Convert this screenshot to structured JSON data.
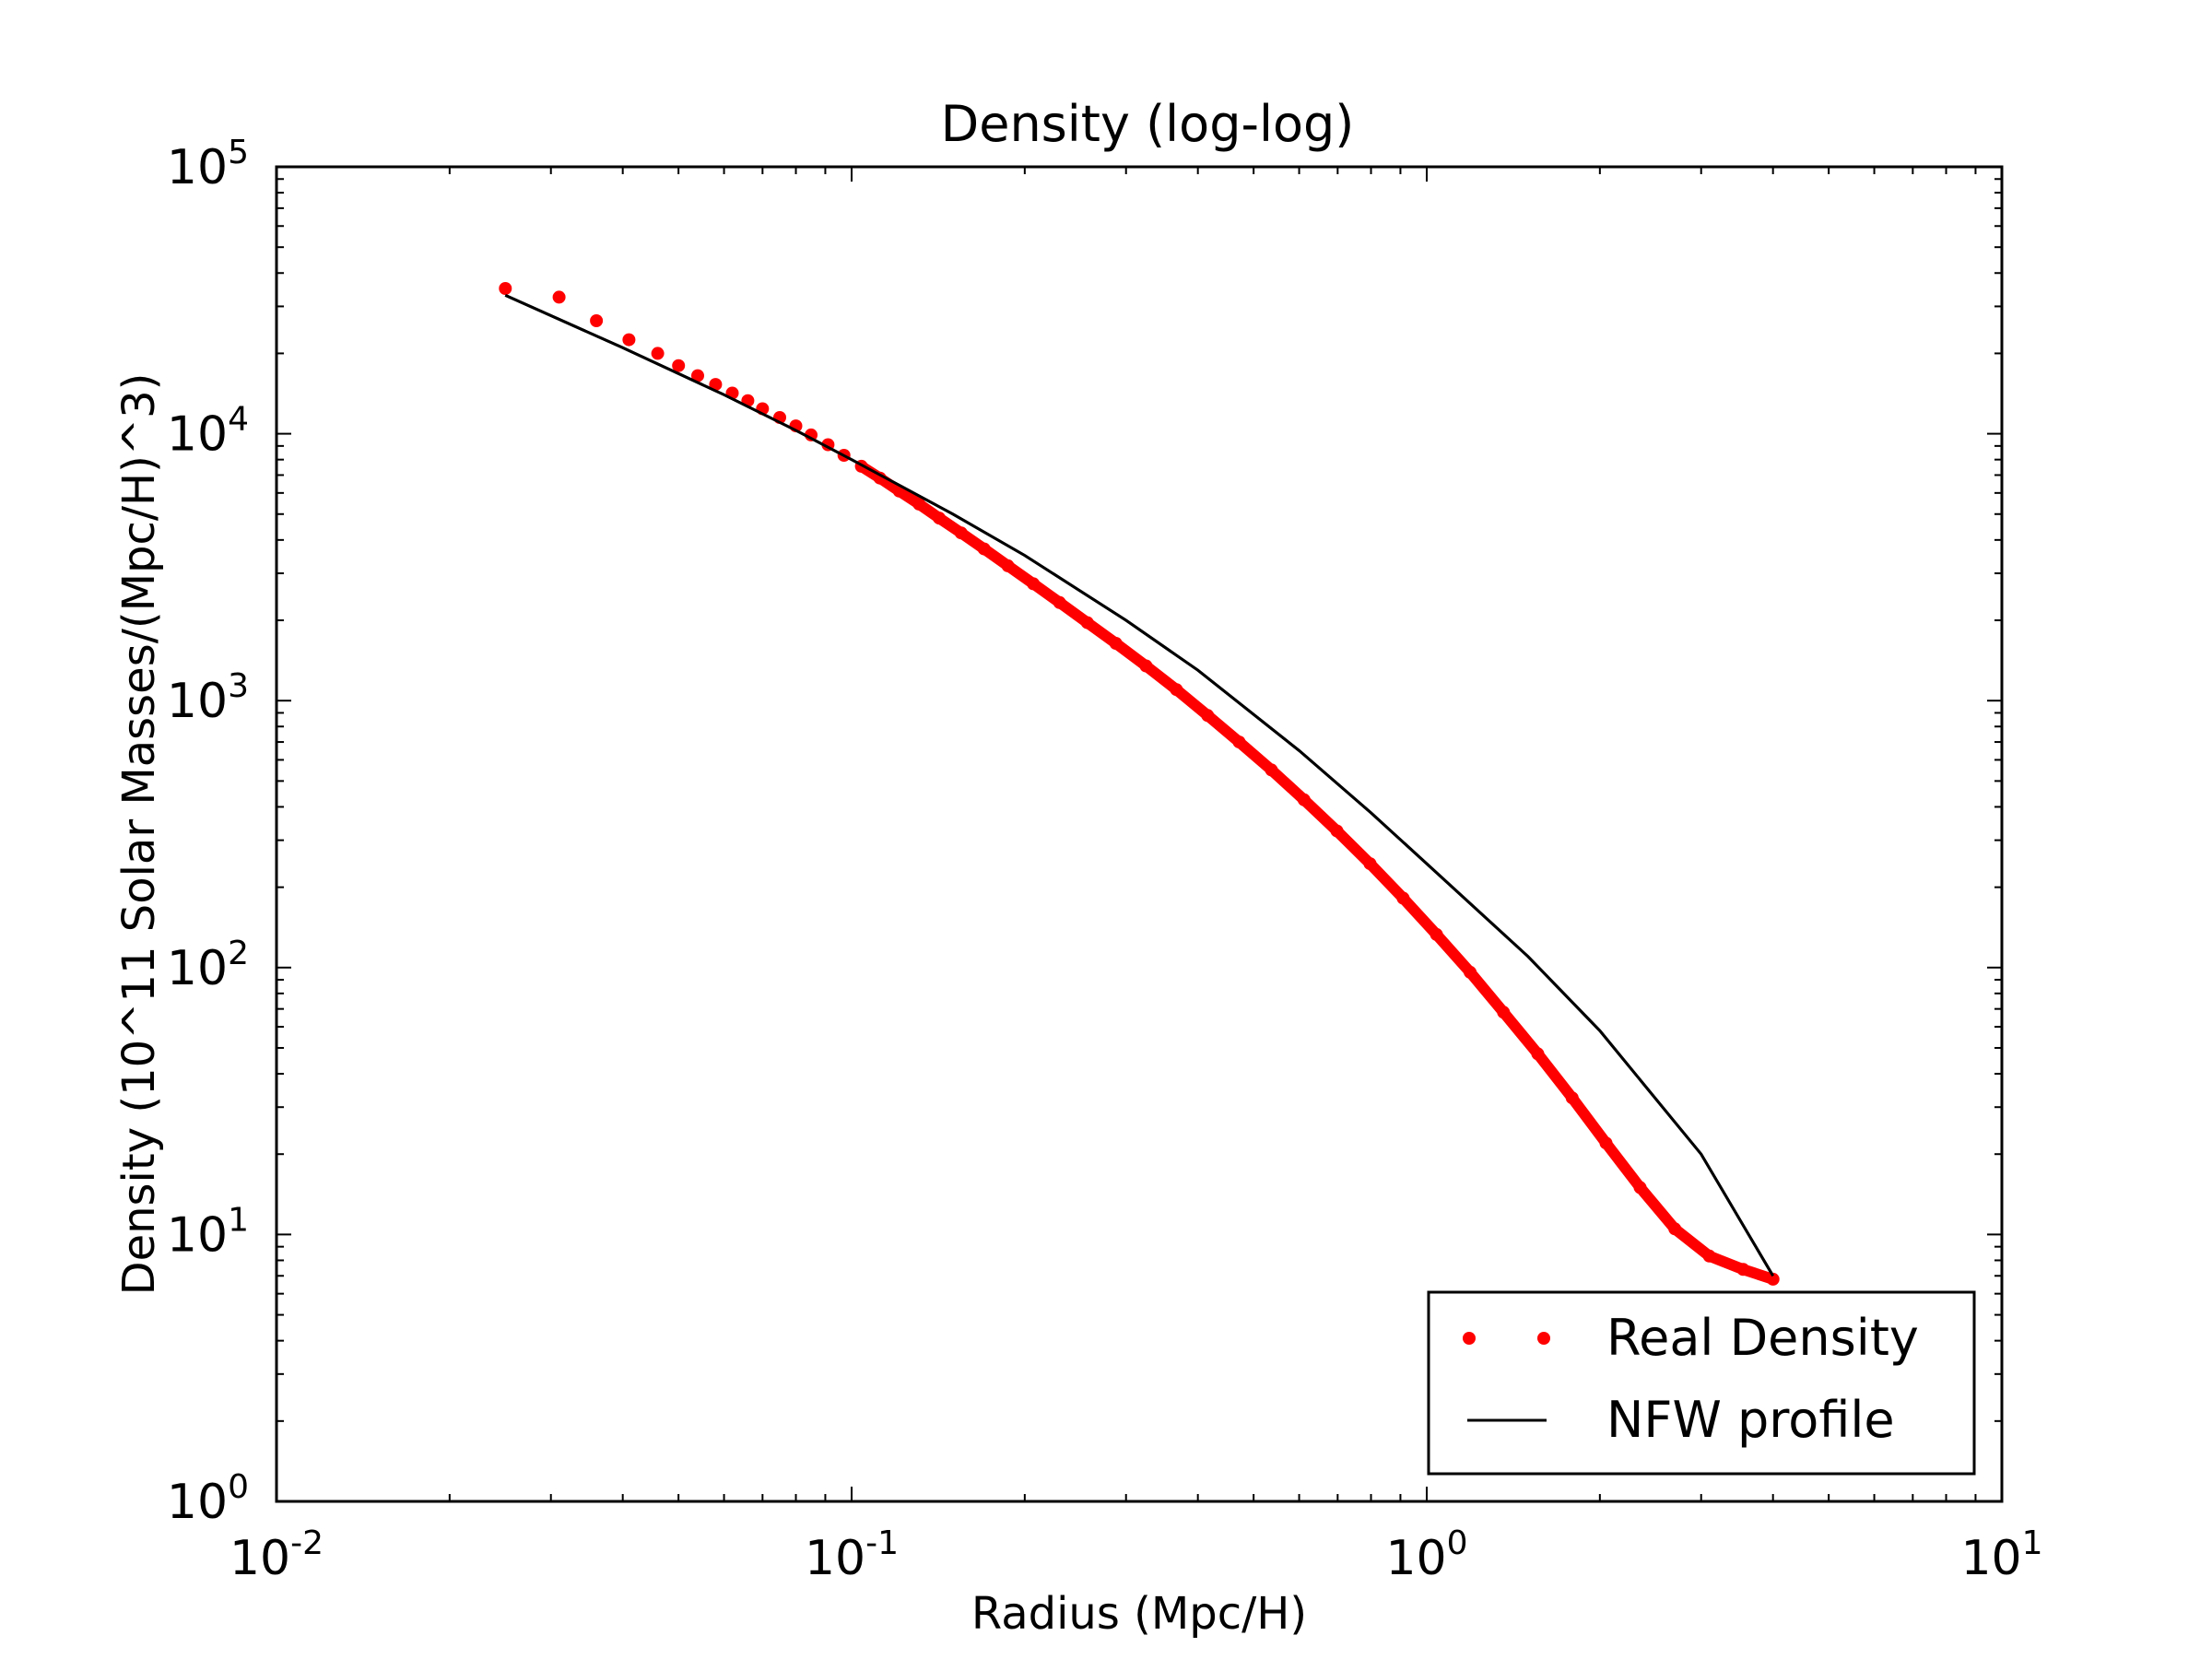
{
  "chart_data": {
    "type": "scatter",
    "title": "Density (log-log)",
    "xlabel": "Radius (Mpc/H)",
    "ylabel": "Density (10^11 Solar Masses/(Mpc/H)^3)",
    "xscale": "log",
    "yscale": "log",
    "xlim": [
      0.01,
      10
    ],
    "ylim": [
      1,
      100000
    ],
    "x_ticks": [
      {
        "value": 0.01,
        "base": "10",
        "exp": "-2"
      },
      {
        "value": 0.1,
        "base": "10",
        "exp": "-1"
      },
      {
        "value": 1,
        "base": "10",
        "exp": "0"
      },
      {
        "value": 10,
        "base": "10",
        "exp": "1"
      }
    ],
    "y_ticks": [
      {
        "value": 1,
        "base": "10",
        "exp": "0"
      },
      {
        "value": 10,
        "base": "10",
        "exp": "1"
      },
      {
        "value": 100,
        "base": "10",
        "exp": "2"
      },
      {
        "value": 1000,
        "base": "10",
        "exp": "3"
      },
      {
        "value": 10000,
        "base": "10",
        "exp": "4"
      },
      {
        "value": 100000,
        "base": "10",
        "exp": "5"
      }
    ],
    "grid": false,
    "legend_position": "bottom-right",
    "series": [
      {
        "name": "Real Density",
        "style": "points",
        "color": "#ff0000",
        "x": [
          0.025,
          0.031,
          0.036,
          0.041,
          0.046,
          0.05,
          0.054,
          0.058,
          0.062,
          0.066,
          0.07,
          0.075,
          0.08,
          0.085,
          0.091,
          0.097,
          0.104,
          0.112,
          0.121,
          0.131,
          0.142,
          0.155,
          0.17,
          0.187,
          0.207,
          0.23,
          0.257,
          0.288,
          0.325,
          0.367,
          0.416,
          0.472,
          0.537,
          0.612,
          0.698,
          0.797,
          0.91,
          1.04,
          1.19,
          1.36,
          1.56,
          1.79,
          2.05,
          2.35,
          2.7,
          3.1,
          3.55,
          4.0
        ],
        "y": [
          35000,
          32500,
          26500,
          22500,
          20000,
          18000,
          16500,
          15300,
          14200,
          13300,
          12400,
          11500,
          10700,
          9900,
          9100,
          8300,
          7550,
          6820,
          6100,
          5450,
          4830,
          4250,
          3700,
          3200,
          2740,
          2330,
          1960,
          1640,
          1350,
          1100,
          880,
          700,
          550,
          425,
          325,
          245,
          182,
          133,
          96,
          68,
          47.5,
          32.5,
          22,
          15,
          10.5,
          8.3,
          7.4,
          6.8
        ]
      },
      {
        "name": "NFW profile",
        "style": "line",
        "color": "#000000",
        "x": [
          0.025,
          0.04,
          0.06,
          0.08,
          0.1,
          0.15,
          0.2,
          0.3,
          0.4,
          0.6,
          0.8,
          1.0,
          1.5,
          2.0,
          3.0,
          4.0
        ],
        "y": [
          33000,
          21000,
          14000,
          10300,
          8000,
          5000,
          3500,
          2000,
          1300,
          650,
          380,
          245,
          110,
          58,
          20,
          7
        ]
      }
    ]
  }
}
